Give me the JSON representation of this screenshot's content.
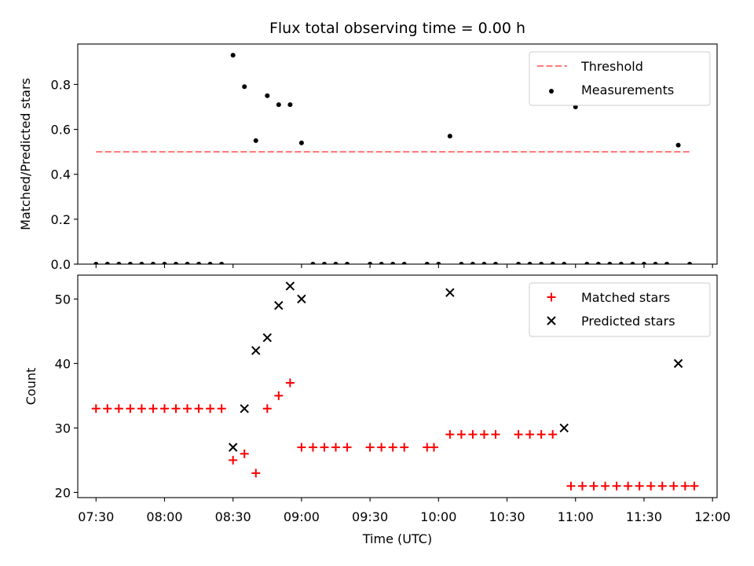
{
  "chart_data": {
    "title": "Flux total observing time = 0.00 h",
    "xlabel": "Time (UTC)",
    "x_ticks": [
      "07:30",
      "08:00",
      "08:30",
      "09:00",
      "09:30",
      "10:00",
      "10:30",
      "11:00",
      "11:30",
      "12:00"
    ],
    "x_range": [
      "07:22",
      "12:02"
    ],
    "panels": [
      {
        "type": "scatter",
        "ylabel": "Matched/Predicted stars",
        "ylim": [
          0,
          0.98
        ],
        "y_ticks": [
          "0.0",
          "0.2",
          "0.4",
          "0.6",
          "0.8"
        ],
        "legend_position": "top-right",
        "series": [
          {
            "name": "Threshold",
            "kind": "dashed-line",
            "color": "#ff7f7f",
            "x": [
              "07:30",
              "11:50"
            ],
            "y": [
              0.5,
              0.5
            ]
          },
          {
            "name": "Measurements",
            "kind": "dot",
            "color": "#000000",
            "x": [
              "07:30",
              "07:35",
              "07:40",
              "07:45",
              "07:50",
              "07:55",
              "08:00",
              "08:05",
              "08:10",
              "08:15",
              "08:20",
              "08:25",
              "08:30",
              "08:35",
              "08:40",
              "08:45",
              "08:50",
              "08:55",
              "09:00",
              "09:05",
              "09:10",
              "09:15",
              "09:20",
              "09:30",
              "09:35",
              "09:40",
              "09:45",
              "09:55",
              "10:00",
              "10:05",
              "10:10",
              "10:15",
              "10:20",
              "10:25",
              "10:35",
              "10:40",
              "10:45",
              "10:50",
              "10:55",
              "11:00",
              "11:05",
              "11:10",
              "11:15",
              "11:20",
              "11:25",
              "11:30",
              "11:35",
              "11:40",
              "11:45",
              "11:50"
            ],
            "y": [
              0,
              0,
              0,
              0,
              0,
              0,
              0,
              0,
              0,
              0,
              0,
              0,
              0.93,
              0.79,
              0.55,
              0.75,
              0.71,
              0.71,
              0.54,
              0,
              0,
              0,
              0,
              0,
              0,
              0,
              0,
              0,
              0,
              0.57,
              0,
              0,
              0,
              0,
              0,
              0,
              0,
              0,
              0,
              0.7,
              0,
              0,
              0,
              0,
              0,
              0,
              0,
              0,
              0.53,
              0
            ]
          }
        ]
      },
      {
        "type": "scatter",
        "ylabel": "Count",
        "ylim": [
          19.2,
          53.7
        ],
        "y_ticks": [
          "20",
          "30",
          "40",
          "50"
        ],
        "legend_position": "top-right",
        "series": [
          {
            "name": "Matched stars",
            "kind": "plus",
            "color": "#ff0000",
            "x": [
              "07:30",
              "07:35",
              "07:40",
              "07:45",
              "07:50",
              "07:55",
              "08:00",
              "08:05",
              "08:10",
              "08:15",
              "08:20",
              "08:25",
              "08:30",
              "08:35",
              "08:40",
              "08:45",
              "08:50",
              "08:55",
              "09:00",
              "09:05",
              "09:10",
              "09:15",
              "09:20",
              "09:30",
              "09:35",
              "09:40",
              "09:45",
              "09:55",
              "09:58",
              "10:05",
              "10:10",
              "10:15",
              "10:20",
              "10:25",
              "10:35",
              "10:40",
              "10:45",
              "10:50",
              "10:58",
              "11:03",
              "11:08",
              "11:13",
              "11:18",
              "11:23",
              "11:28",
              "11:33",
              "11:38",
              "11:43",
              "11:48",
              "11:52"
            ],
            "y": [
              33,
              33,
              33,
              33,
              33,
              33,
              33,
              33,
              33,
              33,
              33,
              33,
              25,
              26,
              23,
              33,
              35,
              37,
              27,
              27,
              27,
              27,
              27,
              27,
              27,
              27,
              27,
              27,
              27,
              29,
              29,
              29,
              29,
              29,
              29,
              29,
              29,
              29,
              21,
              21,
              21,
              21,
              21,
              21,
              21,
              21,
              21,
              21,
              21,
              21
            ]
          },
          {
            "name": "Predicted stars",
            "kind": "x",
            "color": "#000000",
            "x": [
              "08:30",
              "08:35",
              "08:40",
              "08:45",
              "08:50",
              "08:55",
              "09:00",
              "10:05",
              "10:55",
              "11:45"
            ],
            "y": [
              27,
              33,
              42,
              44,
              49,
              52,
              50,
              51,
              30,
              40
            ]
          }
        ]
      }
    ]
  }
}
